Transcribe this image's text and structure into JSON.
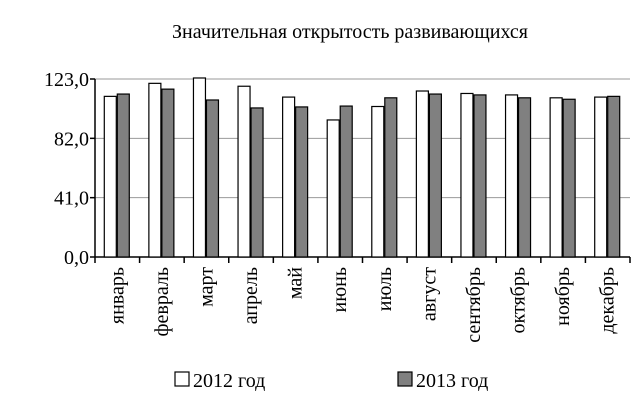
{
  "chart_data": {
    "type": "bar",
    "title": "Значительная  открытость  развивающихся",
    "categories": [
      "январь",
      "февраль",
      "март",
      "апрель",
      "май",
      "июнь",
      "июль",
      "август",
      "сентябрь",
      "октябрь",
      "ноябрь",
      "декабрь"
    ],
    "series": [
      {
        "name": "2012 год",
        "color": "#ffffff",
        "values": [
          111,
          120,
          123.7,
          118,
          110.5,
          94.7,
          104,
          114.7,
          113,
          112,
          110,
          110.5
        ]
      },
      {
        "name": "2013 год",
        "color": "#808080",
        "values": [
          112.6,
          116,
          108.5,
          103,
          103.7,
          104.3,
          110,
          112.6,
          112,
          110,
          109,
          111
        ]
      }
    ],
    "ylim": [
      0,
      123
    ],
    "yticks": [
      {
        "value": 0,
        "label": "0,0"
      },
      {
        "value": 41,
        "label": "41,0"
      },
      {
        "value": 82,
        "label": "82,0"
      },
      {
        "value": 123,
        "label": "123,0"
      }
    ],
    "grid": true,
    "legend": "bottom"
  }
}
